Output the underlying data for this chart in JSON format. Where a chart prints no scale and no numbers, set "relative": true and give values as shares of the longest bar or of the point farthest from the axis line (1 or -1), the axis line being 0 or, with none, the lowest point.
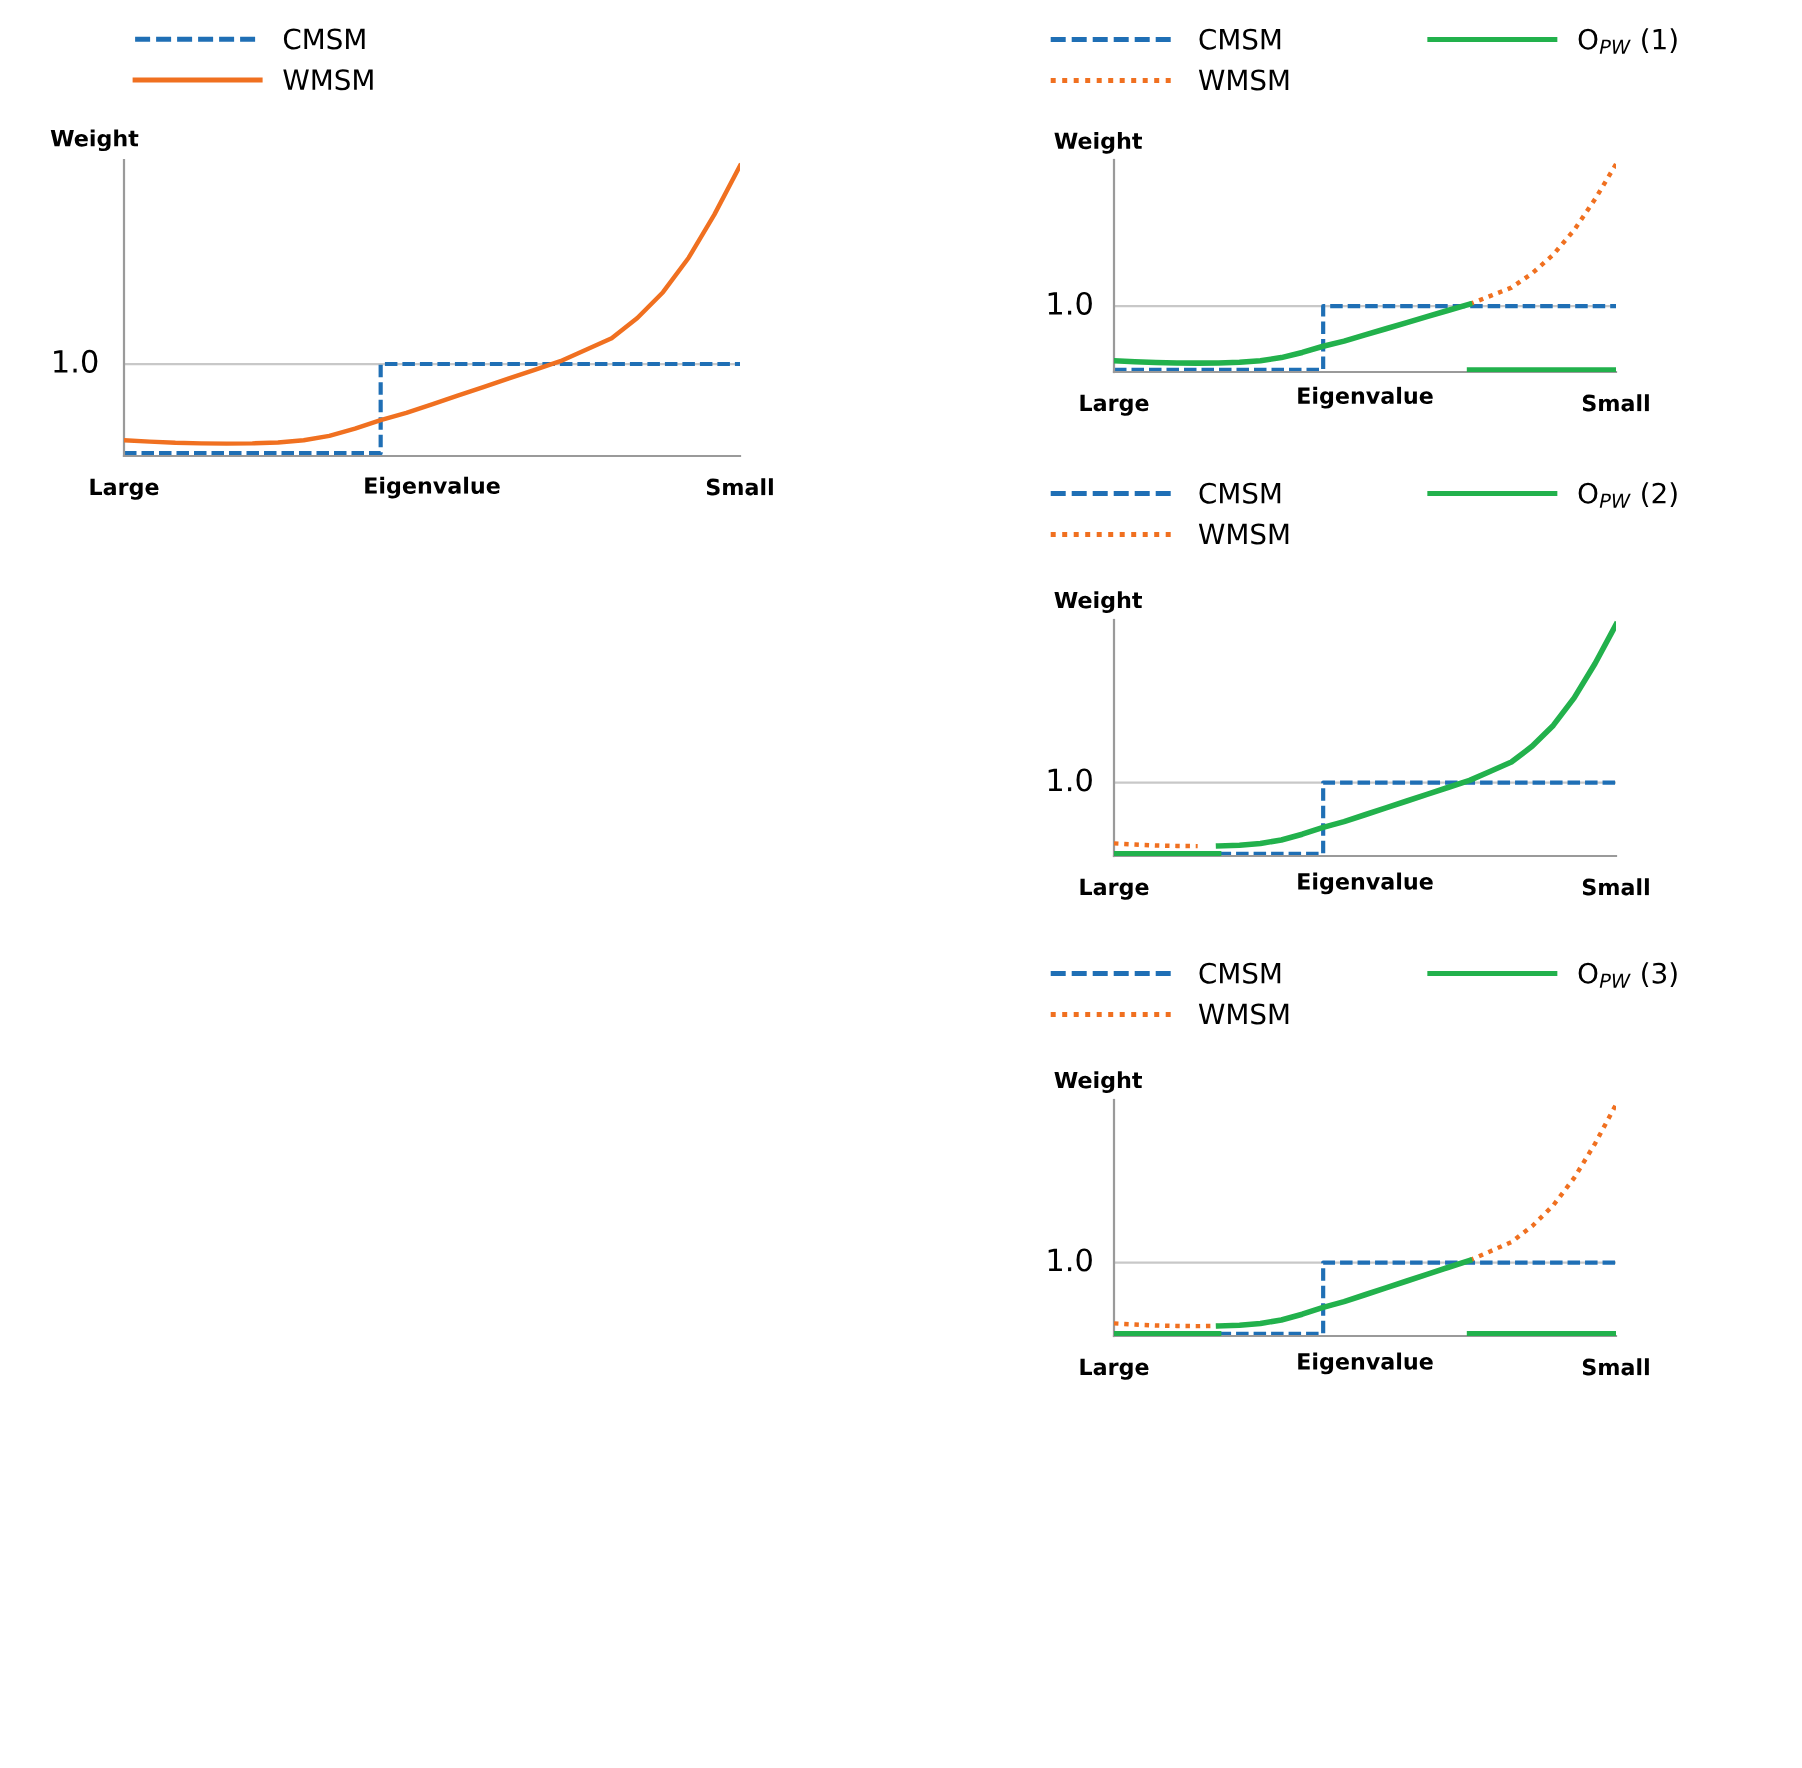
{
  "chart_data": [
    {
      "type": "line",
      "relative": true,
      "ylabel": "Weight",
      "xlabel": "Eigenvalue",
      "legend": "top left",
      "grid": false,
      "annotations": [
        "1.0"
      ],
      "categories": [
        "Large",
        null,
        null,
        null,
        null,
        null,
        null,
        null,
        null,
        null,
        null,
        null,
        null,
        null,
        null,
        null,
        null,
        null,
        null,
        null,
        null,
        null,
        null,
        null,
        "Small"
      ],
      "ref_lines": [
        {
          "axis": "y",
          "value": 0.31,
          "color": "#c8c8c8",
          "line_style": "solid"
        }
      ],
      "series": [
        {
          "name": "CMSM",
          "type": "step",
          "color": "#1f6fb5",
          "line_style": "dashed",
          "values": [
            0,
            0,
            0,
            0,
            0,
            0,
            0,
            0,
            0,
            0,
            0.31,
            0.31,
            0.31,
            0.31,
            0.31,
            0.31,
            0.31,
            0.31,
            0.31,
            0.31,
            0.31,
            0.31,
            0.31,
            0.31,
            0.31
          ]
        },
        {
          "name": "WMSM",
          "color": "#f07020",
          "line_style": "solid",
          "values": [
            0.045,
            0.04,
            0.036,
            0.034,
            0.033,
            0.034,
            0.037,
            0.045,
            0.06,
            0.085,
            0.115,
            0.14,
            0.17,
            0.2,
            0.23,
            0.26,
            0.29,
            0.32,
            0.36,
            0.4,
            0.47,
            0.56,
            0.68,
            0.83,
            1.0
          ]
        }
      ]
    },
    {
      "type": "line",
      "relative": true,
      "ylabel": "Weight",
      "xlabel": "Eigenvalue",
      "legend": "top",
      "grid": false,
      "annotations": [
        "1.0"
      ],
      "categories": [
        "Large",
        null,
        null,
        null,
        null,
        null,
        null,
        null,
        null,
        null,
        null,
        null,
        null,
        null,
        null,
        null,
        null,
        null,
        null,
        null,
        null,
        null,
        null,
        null,
        "Small"
      ],
      "ref_lines": [
        {
          "axis": "y",
          "value": 0.31,
          "color": "#c8c8c8",
          "line_style": "solid"
        }
      ],
      "series": [
        {
          "name": "CMSM",
          "type": "step",
          "color": "#1f6fb5",
          "line_style": "dashed",
          "values": [
            0,
            0,
            0,
            0,
            0,
            0,
            0,
            0,
            0,
            0,
            0.31,
            0.31,
            0.31,
            0.31,
            0.31,
            0.31,
            0.31,
            0.31,
            0.31,
            0.31,
            0.31,
            0.31,
            0.31,
            0.31,
            0.31
          ]
        },
        {
          "name": "WMSM",
          "color": "#f07020",
          "line_style": "dotted",
          "values": [
            null,
            null,
            null,
            null,
            null,
            null,
            null,
            null,
            null,
            null,
            null,
            null,
            null,
            null,
            null,
            null,
            null,
            0.32,
            0.36,
            0.4,
            0.47,
            0.56,
            0.68,
            0.83,
            1.0
          ]
        },
        {
          "name": "O$_{PW}$ (1)",
          "color": "#22b14c",
          "line_style": "solid",
          "values": [
            0.045,
            0.04,
            0.036,
            0.034,
            0.033,
            0.034,
            0.037,
            0.045,
            0.06,
            0.085,
            0.115,
            0.14,
            0.17,
            0.2,
            0.23,
            0.26,
            0.29,
            0.32,
            null,
            null,
            null,
            null,
            null,
            null,
            null
          ]
        },
        {
          "color": "#22b14c",
          "line_style": "solid",
          "values": [
            null,
            null,
            null,
            null,
            null,
            null,
            null,
            null,
            null,
            null,
            null,
            null,
            null,
            null,
            null,
            null,
            null,
            0,
            0,
            0,
            0,
            0,
            0,
            0,
            0
          ]
        }
      ]
    },
    {
      "type": "line",
      "relative": true,
      "ylabel": "Weight",
      "xlabel": "Eigenvalue",
      "legend": "top",
      "grid": false,
      "annotations": [
        "1.0"
      ],
      "categories": [
        "Large",
        null,
        null,
        null,
        null,
        null,
        null,
        null,
        null,
        null,
        null,
        null,
        null,
        null,
        null,
        null,
        null,
        null,
        null,
        null,
        null,
        null,
        null,
        null,
        "Small"
      ],
      "ref_lines": [
        {
          "axis": "y",
          "value": 0.31,
          "color": "#c8c8c8",
          "line_style": "solid"
        }
      ],
      "series": [
        {
          "name": "CMSM",
          "type": "step",
          "color": "#1f6fb5",
          "line_style": "dashed",
          "values": [
            null,
            null,
            null,
            null,
            null,
            0,
            0,
            0,
            0,
            0,
            0.31,
            0.31,
            0.31,
            0.31,
            0.31,
            0.31,
            0.31,
            0.31,
            0.31,
            0.31,
            0.31,
            0.31,
            0.31,
            0.31,
            0.31
          ]
        },
        {
          "name": "WMSM",
          "color": "#f07020",
          "line_style": "dotted",
          "values": [
            0.045,
            0.04,
            0.036,
            0.034,
            0.033,
            null,
            null,
            null,
            null,
            null,
            null,
            null,
            null,
            null,
            null,
            null,
            null,
            null,
            null,
            null,
            null,
            null,
            null,
            null,
            null
          ]
        },
        {
          "name": "O$_{PW}$ (2)",
          "color": "#22b14c",
          "line_style": "solid",
          "values": [
            null,
            null,
            null,
            null,
            null,
            0.034,
            0.037,
            0.045,
            0.06,
            0.085,
            0.115,
            0.14,
            0.17,
            0.2,
            0.23,
            0.26,
            0.29,
            0.32,
            0.36,
            0.4,
            0.47,
            0.56,
            0.68,
            0.83,
            1.0
          ]
        },
        {
          "color": "#22b14c",
          "line_style": "solid",
          "values": [
            0,
            0,
            0,
            0,
            0,
            0,
            null,
            null,
            null,
            null,
            null,
            null,
            null,
            null,
            null,
            null,
            null,
            null,
            null,
            null,
            null,
            null,
            null,
            null,
            null
          ]
        }
      ]
    },
    {
      "type": "line",
      "relative": true,
      "ylabel": "Weight",
      "xlabel": "Eigenvalue",
      "legend": "top",
      "grid": false,
      "annotations": [
        "1.0"
      ],
      "categories": [
        "Large",
        null,
        null,
        null,
        null,
        null,
        null,
        null,
        null,
        null,
        null,
        null,
        null,
        null,
        null,
        null,
        null,
        null,
        null,
        null,
        null,
        null,
        null,
        null,
        "Small"
      ],
      "ref_lines": [
        {
          "axis": "y",
          "value": 0.31,
          "color": "#c8c8c8",
          "line_style": "solid"
        }
      ],
      "series": [
        {
          "name": "CMSM",
          "type": "step",
          "color": "#1f6fb5",
          "line_style": "dashed",
          "values": [
            null,
            null,
            null,
            null,
            null,
            0,
            0,
            0,
            0,
            0,
            0.31,
            0.31,
            0.31,
            0.31,
            0.31,
            0.31,
            0.31,
            0.31,
            0.31,
            0.31,
            0.31,
            0.31,
            0.31,
            0.31,
            0.31
          ]
        },
        {
          "name": "WMSM",
          "color": "#f07020",
          "line_style": "dotted",
          "values": [
            0.045,
            0.04,
            0.036,
            0.034,
            0.033,
            0.034,
            null,
            null,
            null,
            null,
            null,
            null,
            null,
            null,
            null,
            null,
            null,
            0.32,
            0.36,
            0.4,
            0.47,
            0.56,
            0.68,
            0.83,
            1.0
          ]
        },
        {
          "name": "O$_{PW}$ (3)",
          "color": "#22b14c",
          "line_style": "solid",
          "values": [
            null,
            null,
            null,
            null,
            null,
            0.034,
            0.037,
            0.045,
            0.06,
            0.085,
            0.115,
            0.14,
            0.17,
            0.2,
            0.23,
            0.26,
            0.29,
            0.32,
            null,
            null,
            null,
            null,
            null,
            null,
            null
          ]
        },
        {
          "color": "#22b14c",
          "line_style": "solid",
          "values": [
            0,
            0,
            0,
            0,
            0,
            0,
            null,
            null,
            null,
            null,
            null,
            null,
            null,
            null,
            null,
            null,
            null,
            0,
            0,
            0,
            0,
            0,
            0,
            0,
            0
          ]
        }
      ]
    }
  ]
}
